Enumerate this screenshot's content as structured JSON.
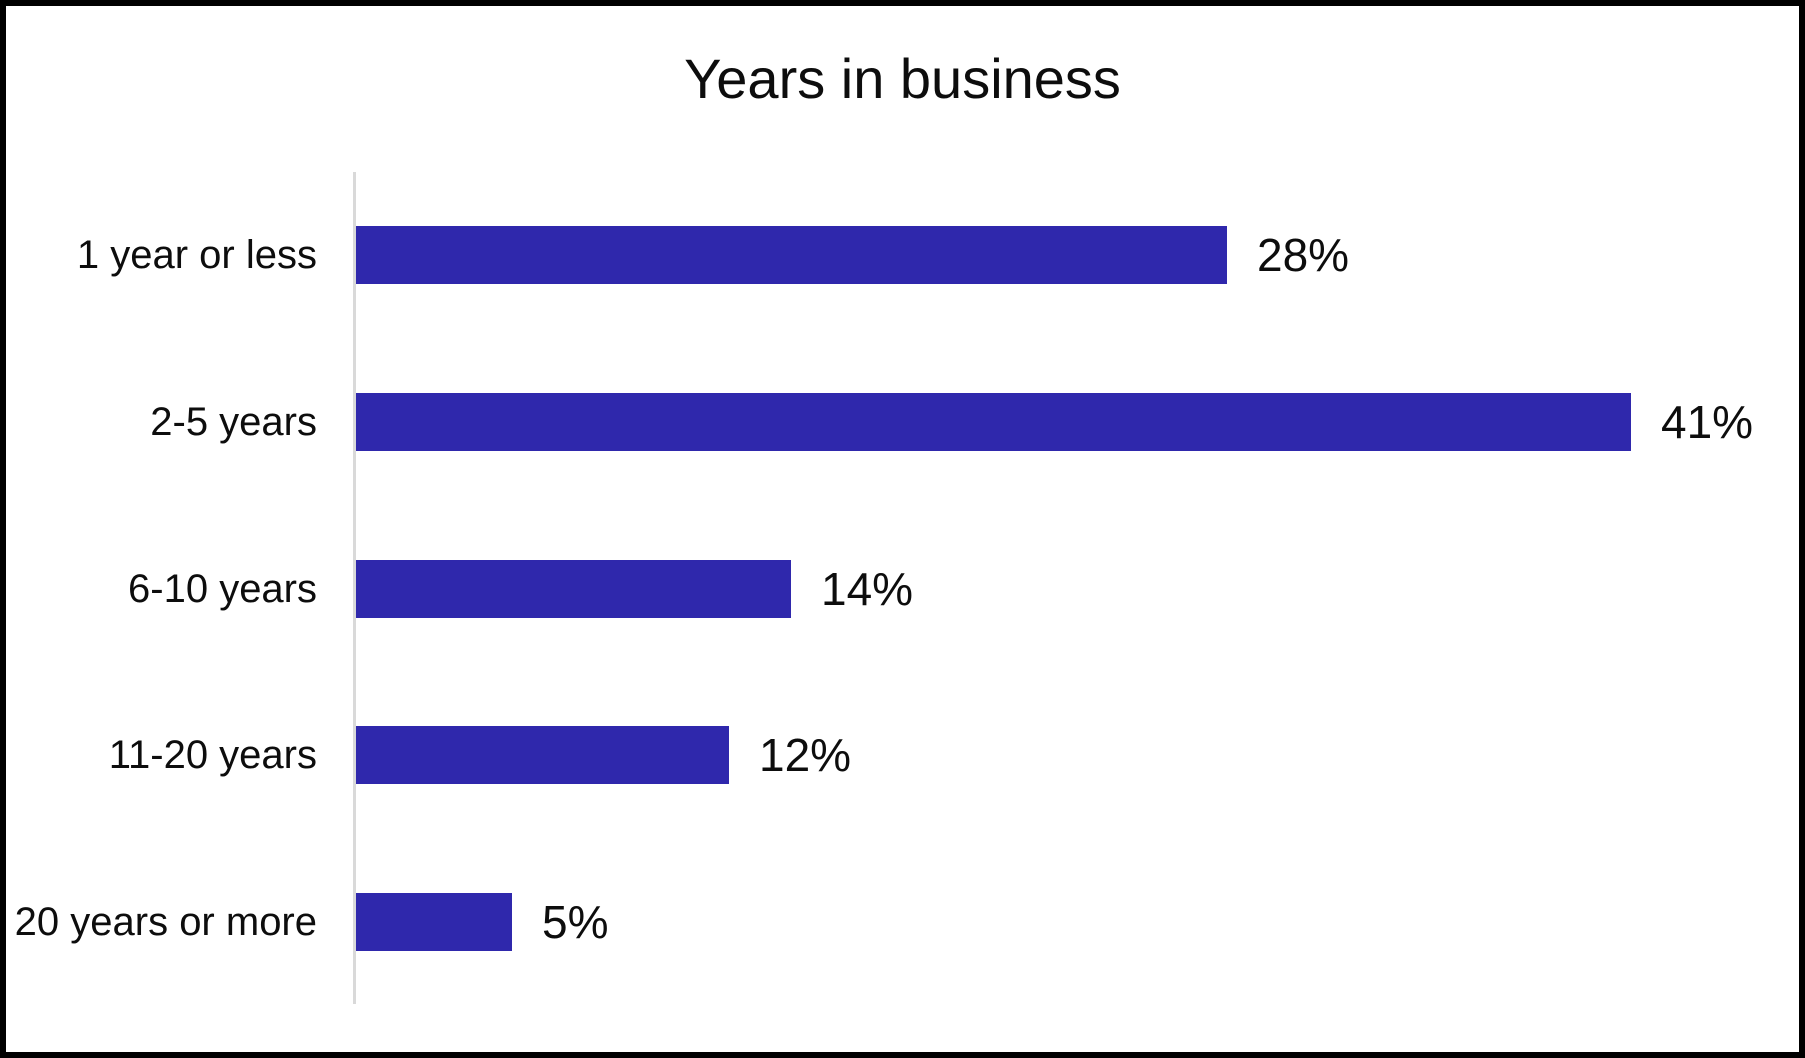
{
  "frame": {
    "background": "#ffffff",
    "border_color": "#000000"
  },
  "chart_data": {
    "type": "bar",
    "orientation": "horizontal",
    "title": "Years in business",
    "categories": [
      "1 year or less",
      "2-5 years",
      "6-10 years",
      "11-20 years",
      "20 years or more"
    ],
    "values": [
      28,
      41,
      14,
      12,
      5
    ],
    "value_labels": [
      "28%",
      "41%",
      "14%",
      "12%",
      "5%"
    ],
    "xlabel": "",
    "ylabel": "",
    "xlim": [
      0,
      45
    ],
    "grid": false,
    "legend": false,
    "data_labels_position": "outside-end",
    "bar_color": "#2f28ac",
    "axis_line_color": "#d9d9d9",
    "text_color": "#0d0d0d"
  }
}
